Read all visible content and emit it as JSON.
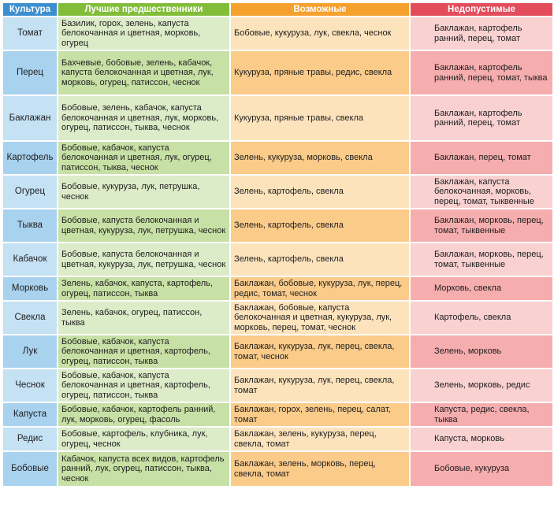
{
  "table": {
    "headers": {
      "crop": "Культура",
      "best": "Лучшие предшественники",
      "possible": "Возможные",
      "forbidden": "Недопустимые"
    },
    "rows": [
      {
        "crop": "Томат",
        "best": "Базилик, горох, зелень, капуста белокочанная и цветная, морковь, огурец",
        "possible": "Бобовые, кукуруза, лук, свекла, чеснок",
        "forbidden": "Баклажан, картофель ранний, перец, томат"
      },
      {
        "crop": "Перец",
        "best": "Бахчевые, бобовые, зелень, кабачок, капуста белокочанная и цветная, лук, морковь, огурец, патиссон, чеснок",
        "possible": "Кукуруза, пряные травы, редис, свекла",
        "forbidden": "Баклажан, картофель ранний, перец, томат, тыква"
      },
      {
        "crop": "Баклажан",
        "best": "Бобовые, зелень, кабачок, капуста белокочанная и цветная, лук, морковь, огурец, патиссон, тыква, чеснок",
        "possible": "Кукуруза, пряные травы, свекла",
        "forbidden": "Баклажан, картофель ранний, перец, томат"
      },
      {
        "crop": "Картофель",
        "best": "Бобовые, кабачок, капуста белокочанная и цветная, лук, огурец, патиссон, тыква, чеснок",
        "possible": "Зелень, кукуруза, морковь, свекла",
        "forbidden": "Баклажан, перец, томат"
      },
      {
        "crop": "Огурец",
        "best": "Бобовые, кукуруза, лук, петрушка, чеснок",
        "possible": "Зелень, картофель, свекла",
        "forbidden": "Баклажан, капуста белокочанная, морковь, перец, томат, тыквенные"
      },
      {
        "crop": "Тыква",
        "best": "Бобовые, капуста белокочанная и цветная, кукуруза, лук, петрушка, чеснок",
        "possible": "Зелень, картофель, свекла",
        "forbidden": "Баклажан, морковь, перец, томат, тыквенные"
      },
      {
        "crop": "Кабачок",
        "best": "Бобовые, капуста белокочанная и цветная, кукуруза, лук, петрушка, чеснок",
        "possible": "Зелень, картофель, свекла",
        "forbidden": "Баклажан, морковь, перец, томат, тыквенные"
      },
      {
        "crop": "Морковь",
        "best": "Зелень, кабачок, капуста, картофель, огурец, патиссон, тыква",
        "possible": "Баклажан, бобовые, кукуруза, лук, перец, редис, томат, чеснок",
        "forbidden": "Морковь, свекла"
      },
      {
        "crop": "Свекла",
        "best": "Зелень, кабачок, огурец, патиссон, тыква",
        "possible": "Баклажан, бобовые, капуста белокочанная и цветная, кукуруза, лук, морковь, перец, томат, чеснок",
        "forbidden": "Картофель, свекла"
      },
      {
        "crop": "Лук",
        "best": "Бобовые, кабачок, капуста белокочанная и цветная, картофель, огурец, патиссон, тыква",
        "possible": "Баклажан, кукуруза, лук, перец, свекла, томат, чеснок",
        "forbidden": "Зелень, морковь"
      },
      {
        "crop": "Чеснок",
        "best": "Бобовые, кабачок, капуста белокочанная и цветная, картофель, огурец, патиссон, тыква",
        "possible": "Баклажан, кукуруза, лук, перец, свекла, томат",
        "forbidden": "Зелень, морковь, редис"
      },
      {
        "crop": "Капуста",
        "best": "Бобовые, кабачок, картофель ранний, лук, морковь, огурец, фасоль",
        "possible": "Баклажан, горох, зелень, перец, салат, томат",
        "forbidden": "Капуста, редис, свекла, тыква"
      },
      {
        "crop": "Редис",
        "best": "Бобовые, картофель, клубника, лук, огурец, чеснок",
        "possible": "Баклажан, зелень, кукуруза, перец, свекла, томат",
        "forbidden": "Капуста, морковь"
      },
      {
        "crop": "Бобовые",
        "best": "Кабачок, капуста всех видов, картофель ранний, лук, огурец, патиссон, тыква, чеснок",
        "possible": "Баклажан, зелень, морковь, перец, свекла, томат",
        "forbidden": "Бобовые, кукуруза"
      }
    ]
  }
}
